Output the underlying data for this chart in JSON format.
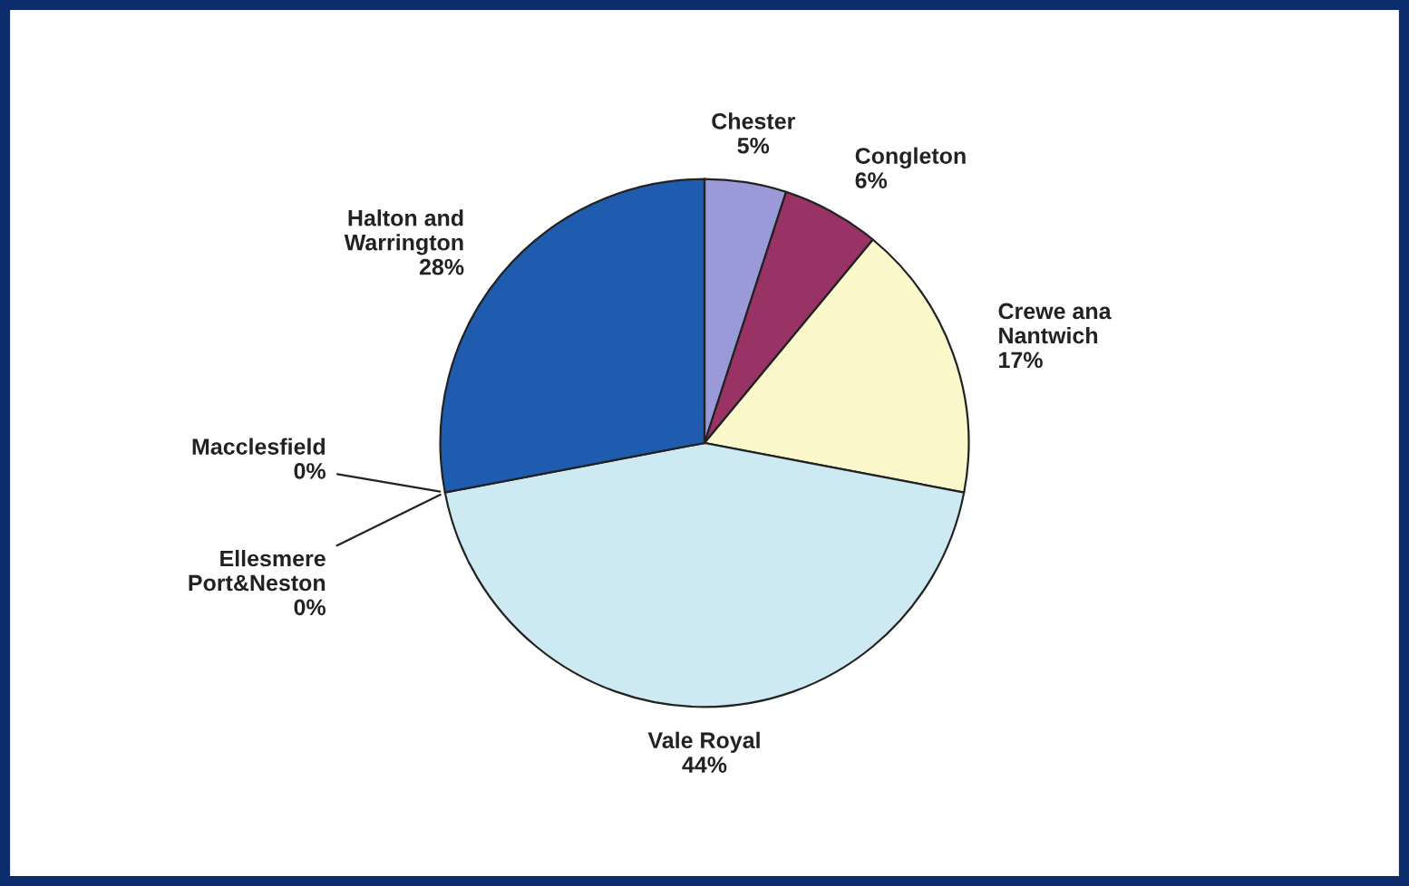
{
  "chart_data": {
    "type": "pie",
    "categories": [
      "Chester",
      "Congleton",
      "Crewe ana\nNantwich",
      "Vale Royal",
      "Ellesmere\nPort&Neston",
      "Macclesfield",
      "Halton and\nWarrington"
    ],
    "values": [
      5,
      6,
      17,
      44,
      0,
      0,
      28
    ],
    "colors": [
      "#9a9ad8",
      "#993366",
      "#fbf8cc",
      "#cde9f1",
      "#e8e8e8",
      "#d0d0d0",
      "#1f5cb0"
    ],
    "value_labels": [
      "5%",
      "6%",
      "17%",
      "44%",
      "0%",
      "0%",
      "28%"
    ],
    "legend": false
  }
}
